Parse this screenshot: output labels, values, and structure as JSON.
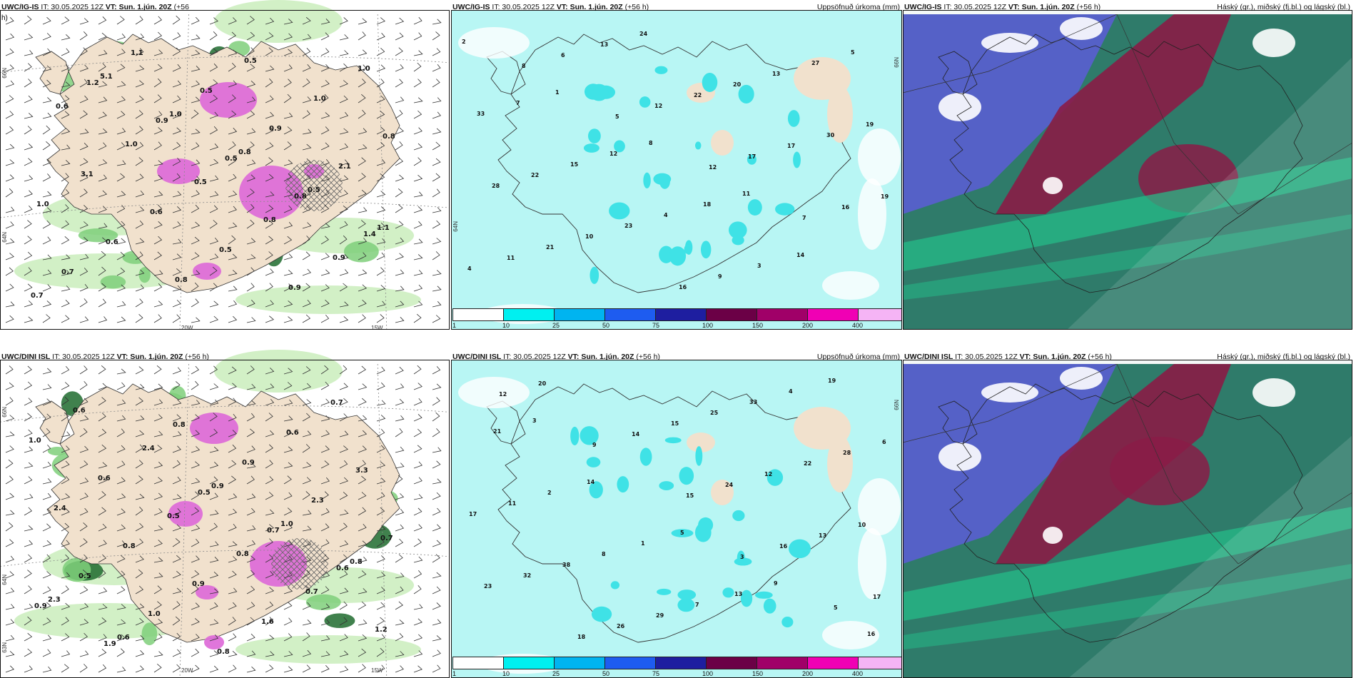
{
  "colors": {
    "land": "#f1e1cd",
    "sea": "#ffffff",
    "green_light": "#cdeec0",
    "green_mid": "#7fcf7a",
    "green_dark": "#1f6b2e",
    "magenta": "#dd6ad8",
    "precip_bg": "#b8f6f4",
    "precip_spot": "#3fe2e6",
    "cloud_low": "#5a5ed2",
    "cloud_mid": "#2f7b6a",
    "cloud_high": "#8a1c46",
    "cloud_green": "#23c08a"
  },
  "rows": [
    {
      "model": "UWC/IG-IS",
      "left": {
        "header_model": "UWC/IG-IS",
        "header_it": "IT: 30.05.2025 12Z",
        "header_vt": "VT: Sun. 1.jún. 20Z",
        "header_lead": "(+56",
        "header_lead2": "h)"
      },
      "mid": {
        "header_model": "UWC/IG-IS",
        "header_it": "IT: 30.05.2025 12Z",
        "header_vt": "VT: Sun. 1.jún. 20Z",
        "header_lead": "(+56 h)",
        "header_right": "Uppsöfnuð úrkoma (mm)"
      },
      "right": {
        "header_model": "UWC/IG-IS",
        "header_it": "IT: 30.05.2025 12Z",
        "header_vt": "VT: Sun. 1.jún. 20Z",
        "header_lead": "(+56 h)",
        "header_right": "Háský (gr.), miðský (fj.bl.) og lágský (bl.)"
      },
      "wind_values": [
        {
          "t": "1.2"
        },
        {
          "t": "0.9"
        },
        {
          "t": "0.5"
        },
        {
          "t": "0.8"
        },
        {
          "t": "1.4"
        },
        {
          "t": "0.7"
        },
        {
          "t": "1.1"
        },
        {
          "t": "0.5"
        },
        {
          "t": "0.9"
        },
        {
          "t": "2.1"
        },
        {
          "t": "1.0"
        },
        {
          "t": "0.6"
        },
        {
          "t": "0.8"
        },
        {
          "t": "0.5"
        },
        {
          "t": "1.0"
        },
        {
          "t": "0.8"
        },
        {
          "t": "3.1"
        },
        {
          "t": "0.6"
        },
        {
          "t": "0.5"
        },
        {
          "t": "0.9"
        },
        {
          "t": "1.0"
        },
        {
          "t": "0.6"
        },
        {
          "t": "1.0"
        },
        {
          "t": "0.5"
        },
        {
          "t": "0.8"
        },
        {
          "t": "0.9"
        },
        {
          "t": "0.7"
        },
        {
          "t": "5.1"
        },
        {
          "t": "1.0"
        },
        {
          "t": "0.8"
        },
        {
          "t": "0.5"
        },
        {
          "t": "1.1"
        }
      ],
      "precip_values": [
        {
          "t": "8"
        },
        {
          "t": "5"
        },
        {
          "t": "12"
        },
        {
          "t": "7"
        },
        {
          "t": "4"
        },
        {
          "t": "6"
        },
        {
          "t": "12"
        },
        {
          "t": "17"
        },
        {
          "t": "16"
        },
        {
          "t": "11"
        },
        {
          "t": "13"
        },
        {
          "t": "22"
        },
        {
          "t": "17"
        },
        {
          "t": "19"
        },
        {
          "t": "21"
        },
        {
          "t": "24"
        },
        {
          "t": "20"
        },
        {
          "t": "30"
        },
        {
          "t": "28"
        },
        {
          "t": "10"
        },
        {
          "t": "16"
        },
        {
          "t": "13"
        },
        {
          "t": "19"
        },
        {
          "t": "22"
        },
        {
          "t": "23"
        },
        {
          "t": "9"
        },
        {
          "t": "27"
        },
        {
          "t": "33"
        },
        {
          "t": "15"
        },
        {
          "t": "4"
        },
        {
          "t": "3"
        },
        {
          "t": "5"
        },
        {
          "t": "7"
        },
        {
          "t": "12"
        },
        {
          "t": "18"
        },
        {
          "t": "14"
        },
        {
          "t": "2"
        },
        {
          "t": "1"
        },
        {
          "t": "8"
        },
        {
          "t": "11"
        }
      ]
    },
    {
      "model": "UWC/DINI ISL",
      "left": {
        "header_model": "UWC/DINI ISL",
        "header_it": "IT: 30.05.2025 12Z",
        "header_vt": "VT: Sun. 1.jún. 20Z",
        "header_lead": "(+56 h)",
        "header_lead2": ""
      },
      "mid": {
        "header_model": "UWC/DINI ISL",
        "header_it": "IT: 30.05.2025 12Z",
        "header_vt": "VT: Sun. 1.jún. 20Z",
        "header_lead": "(+56 h)",
        "header_right": "Uppsöfnuð úrkoma (mm)"
      },
      "right": {
        "header_model": "UWC/DINI ISL",
        "header_it": "IT: 30.05.2025 12Z",
        "header_vt": "VT: Sun. 1.jún. 20Z",
        "header_lead": "(+56 h)",
        "header_right": "Háský (gr.), miðský (fj.bl.) og lágský (bl.)"
      },
      "wind_values": [
        {
          "t": "0.5"
        },
        {
          "t": "0.7"
        },
        {
          "t": "0.6"
        },
        {
          "t": "0.9"
        },
        {
          "t": "1.9"
        },
        {
          "t": "0.8"
        },
        {
          "t": "0.9"
        },
        {
          "t": "2.3"
        },
        {
          "t": "0.7"
        },
        {
          "t": "0.5"
        },
        {
          "t": "1.0"
        },
        {
          "t": "0.8"
        },
        {
          "t": "0.6"
        },
        {
          "t": "3.3"
        },
        {
          "t": "2.4"
        },
        {
          "t": "0.8"
        },
        {
          "t": "0.9"
        },
        {
          "t": "1.6"
        },
        {
          "t": "0.7"
        },
        {
          "t": "1.0"
        },
        {
          "t": "0.6"
        },
        {
          "t": "0.5"
        },
        {
          "t": "0.8"
        },
        {
          "t": "0.7"
        },
        {
          "t": "1.2"
        },
        {
          "t": "0.6"
        },
        {
          "t": "2.4"
        },
        {
          "t": "0.9"
        },
        {
          "t": "1.0"
        },
        {
          "t": "0.8"
        },
        {
          "t": "2.3"
        },
        {
          "t": "0.6"
        }
      ],
      "precip_values": [
        {
          "t": "3"
        },
        {
          "t": "5"
        },
        {
          "t": "12"
        },
        {
          "t": "9"
        },
        {
          "t": "15"
        },
        {
          "t": "16"
        },
        {
          "t": "17"
        },
        {
          "t": "20"
        },
        {
          "t": "14"
        },
        {
          "t": "24"
        },
        {
          "t": "13"
        },
        {
          "t": "23"
        },
        {
          "t": "18"
        },
        {
          "t": "15"
        },
        {
          "t": "12"
        },
        {
          "t": "10"
        },
        {
          "t": "32"
        },
        {
          "t": "26"
        },
        {
          "t": "25"
        },
        {
          "t": "22"
        },
        {
          "t": "17"
        },
        {
          "t": "38"
        },
        {
          "t": "29"
        },
        {
          "t": "33"
        },
        {
          "t": "28"
        },
        {
          "t": "11"
        },
        {
          "t": "8"
        },
        {
          "t": "7"
        },
        {
          "t": "4"
        },
        {
          "t": "6"
        },
        {
          "t": "2"
        },
        {
          "t": "1"
        },
        {
          "t": "13"
        },
        {
          "t": "19"
        },
        {
          "t": "21"
        },
        {
          "t": "14"
        },
        {
          "t": "5"
        },
        {
          "t": "9"
        },
        {
          "t": "16"
        },
        {
          "t": "3"
        }
      ]
    }
  ],
  "colorbar": {
    "colors": [
      "#ffffff",
      "#00f0f0",
      "#00b4f0",
      "#1e5cf0",
      "#1e1ea0",
      "#6b0046",
      "#a00068",
      "#f000b4",
      "#f5b4f5"
    ],
    "ticks": [
      "1",
      "10",
      "25",
      "50",
      "75",
      "100",
      "150",
      "200",
      "400"
    ]
  },
  "grid_labels": {
    "lon": [
      "20W",
      "15W"
    ],
    "lat": [
      "66N",
      "64N",
      "63N"
    ]
  }
}
